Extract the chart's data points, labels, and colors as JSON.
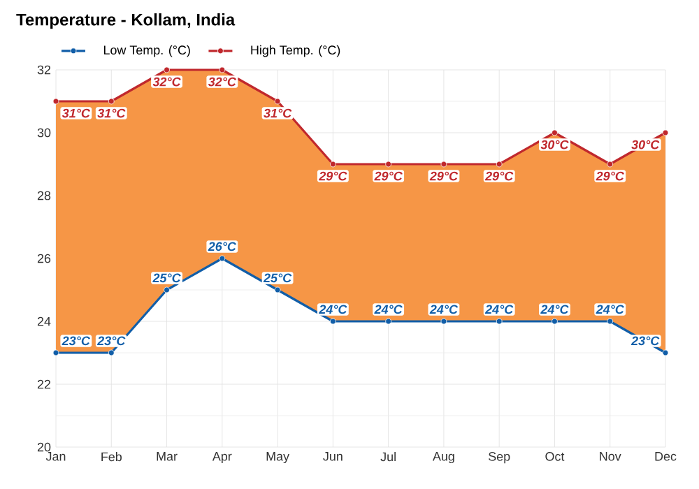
{
  "chart_data": {
    "type": "line",
    "title": "Temperature - Kollam, India",
    "categories": [
      "Jan",
      "Feb",
      "Mar",
      "Apr",
      "May",
      "Jun",
      "Jul",
      "Aug",
      "Sep",
      "Oct",
      "Nov",
      "Dec"
    ],
    "series": [
      {
        "name": "Low Temp. (°C)",
        "color": "#115ea8",
        "values": [
          23,
          23,
          25,
          26,
          25,
          24,
          24,
          24,
          24,
          24,
          24,
          23
        ],
        "value_labels": [
          "23°C",
          "23°C",
          "25°C",
          "26°C",
          "25°C",
          "24°C",
          "24°C",
          "24°C",
          "24°C",
          "24°C",
          "24°C",
          "23°C"
        ]
      },
      {
        "name": "High Temp. (°C)",
        "color": "#c0282d",
        "values": [
          31,
          31,
          32,
          32,
          31,
          29,
          29,
          29,
          29,
          30,
          29,
          30
        ],
        "value_labels": [
          "31°C",
          "31°C",
          "32°C",
          "32°C",
          "31°C",
          "29°C",
          "29°C",
          "29°C",
          "29°C",
          "30°C",
          "29°C",
          "30°C"
        ]
      }
    ],
    "ylim": [
      20,
      32
    ],
    "yticks": [
      20,
      22,
      24,
      26,
      28,
      30,
      32
    ],
    "grid": true,
    "legend": "top left",
    "marker": "circle",
    "line_style": "solid"
  }
}
